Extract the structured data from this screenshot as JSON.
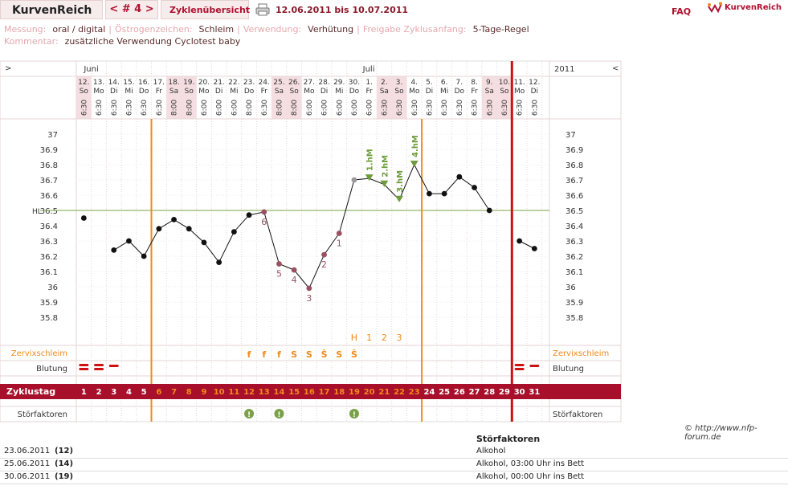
{
  "header": {
    "brand": "KurvenReich",
    "cycle_nav": "< # 4 >",
    "tab": "Zyklenübersicht",
    "date_range": "12.06.2011 bis 10.07.2011",
    "faq": "FAQ",
    "logo_text": "KurvenReich"
  },
  "meta": {
    "messung_label": "Messung:",
    "messung_value": "oral / digital",
    "oestrogen_label": "Östrogenzeichen:",
    "oestrogen_value": "Schleim",
    "verwendung_label": "Verwendung:",
    "verwendung_value": "Verhütung",
    "freigabe_label": "Freigabe Zyklusanfang:",
    "freigabe_value": "5-Tage-Regel",
    "kommentar_label": "Kommentar:",
    "kommentar_value": "zusätzliche Verwendung Cyclotest baby"
  },
  "chart_data": {
    "type": "line",
    "month_labels": [
      "Juni",
      "Juli"
    ],
    "year_label": "2011",
    "nav_left": ">",
    "nav_right": "<",
    "days": [
      {
        "date": "12.",
        "wd": "So",
        "time": "6:30",
        "we": true
      },
      {
        "date": "13.",
        "wd": "Mo",
        "time": "6:30",
        "we": false
      },
      {
        "date": "14.",
        "wd": "Di",
        "time": "6:30",
        "we": false
      },
      {
        "date": "15.",
        "wd": "Mi",
        "time": "6:30",
        "we": false
      },
      {
        "date": "16.",
        "wd": "Do",
        "time": "6:30",
        "we": false
      },
      {
        "date": "17.",
        "wd": "Fr",
        "time": "6:30",
        "we": false
      },
      {
        "date": "18.",
        "wd": "Sa",
        "time": "8:00",
        "we": true
      },
      {
        "date": "19.",
        "wd": "So",
        "time": "8:00",
        "we": true
      },
      {
        "date": "20.",
        "wd": "Mo",
        "time": "6:00",
        "we": false
      },
      {
        "date": "21.",
        "wd": "Di",
        "time": "6:00",
        "we": false
      },
      {
        "date": "22.",
        "wd": "Mi",
        "time": "6:00",
        "we": false
      },
      {
        "date": "23.",
        "wd": "Do",
        "time": "8:00",
        "we": false
      },
      {
        "date": "24.",
        "wd": "Fr",
        "time": "6:30",
        "we": false
      },
      {
        "date": "25.",
        "wd": "Sa",
        "time": "8:00",
        "we": true
      },
      {
        "date": "26.",
        "wd": "So",
        "time": "8:00",
        "we": true
      },
      {
        "date": "27.",
        "wd": "Mo",
        "time": "6:00",
        "we": false
      },
      {
        "date": "28.",
        "wd": "Di",
        "time": "6:00",
        "we": false
      },
      {
        "date": "29.",
        "wd": "Mi",
        "time": "6:00",
        "we": false
      },
      {
        "date": "30.",
        "wd": "Do",
        "time": "6:00",
        "we": false
      },
      {
        "date": "1.",
        "wd": "Fr",
        "time": "6:00",
        "we": false
      },
      {
        "date": "2.",
        "wd": "Sa",
        "time": "6:30",
        "we": true
      },
      {
        "date": "3.",
        "wd": "So",
        "time": "6:30",
        "we": true
      },
      {
        "date": "4.",
        "wd": "Mo",
        "time": "6:30",
        "we": false
      },
      {
        "date": "5.",
        "wd": "Di",
        "time": "6:30",
        "we": false
      },
      {
        "date": "6.",
        "wd": "Mi",
        "time": "6:30",
        "we": false
      },
      {
        "date": "7.",
        "wd": "Do",
        "time": "6:30",
        "we": false
      },
      {
        "date": "8.",
        "wd": "Fr",
        "time": "6:30",
        "we": false
      },
      {
        "date": "9.",
        "wd": "Sa",
        "time": "6:30",
        "we": true
      },
      {
        "date": "10.",
        "wd": "So",
        "time": "6:30",
        "we": true
      },
      {
        "date": "11.",
        "wd": "Mo",
        "time": "6:30",
        "we": false
      },
      {
        "date": "12.",
        "wd": "Di",
        "time": "6:30",
        "we": false
      }
    ],
    "temperature_ticks": [
      "37",
      "36.9",
      "36.8",
      "36.7",
      "36.6",
      "36.5",
      "36.4",
      "36.3",
      "36.2",
      "36.1",
      "36",
      "35.9",
      "35.8"
    ],
    "ylim": [
      35.8,
      37.0
    ],
    "hl_label": "HL",
    "hl_value": 36.5,
    "temperatures": [
      36.45,
      null,
      36.24,
      36.3,
      36.2,
      36.38,
      36.44,
      36.38,
      36.29,
      36.16,
      36.36,
      36.47,
      36.49,
      36.15,
      36.11,
      35.99,
      36.21,
      36.35,
      36.7,
      36.71,
      36.67,
      36.57,
      36.8,
      36.61,
      36.61,
      36.72,
      36.65,
      36.5,
      null,
      36.3,
      36.25
    ],
    "segments": [
      [
        2,
        17
      ],
      [
        17,
        27
      ],
      [
        29,
        30
      ]
    ],
    "count_labels": [
      {
        "day": 13,
        "label": "6"
      },
      {
        "day": 14,
        "label": "5"
      },
      {
        "day": 15,
        "label": "4"
      },
      {
        "day": 16,
        "label": "3"
      },
      {
        "day": 17,
        "label": "2"
      },
      {
        "day": 18,
        "label": "1"
      }
    ],
    "hm_labels": [
      {
        "day": 20,
        "label": "1.hM"
      },
      {
        "day": 21,
        "label": "2.hM"
      },
      {
        "day": 22,
        "label": "3.hM"
      },
      {
        "day": 23,
        "label": "4.hM"
      }
    ],
    "peak_labels": [
      {
        "day": 19,
        "label": "H"
      },
      {
        "day": 20,
        "label": "1"
      },
      {
        "day": 21,
        "label": "2"
      },
      {
        "day": 22,
        "label": "3"
      }
    ],
    "mucus_label": "Zervixschleim",
    "mucus": [
      {
        "day": 12,
        "s": "f"
      },
      {
        "day": 13,
        "s": "f"
      },
      {
        "day": 14,
        "s": "f"
      },
      {
        "day": 15,
        "s": "S"
      },
      {
        "day": 16,
        "s": "S"
      },
      {
        "day": 17,
        "s": "Ŝ"
      },
      {
        "day": 18,
        "s": "S"
      },
      {
        "day": 19,
        "s": "Ŝ"
      }
    ],
    "bleeding_label": "Blutung",
    "bleeding": [
      {
        "day": 1,
        "level": 2
      },
      {
        "day": 2,
        "level": 2
      },
      {
        "day": 3,
        "level": 1
      },
      {
        "day": 30,
        "level": 2
      },
      {
        "day": 31,
        "level": 1
      }
    ],
    "cycle_label": "Zyklustag",
    "cycle_days": [
      "1",
      "2",
      "3",
      "4",
      "5",
      "6",
      "7",
      "8",
      "9",
      "10",
      "11",
      "12",
      "13",
      "14",
      "15",
      "16",
      "17",
      "18",
      "19",
      "20",
      "21",
      "22",
      "23",
      "24",
      "25",
      "26",
      "27",
      "28",
      "29",
      "30",
      "31"
    ],
    "disturb_label": "Störfaktoren",
    "disturb_days": [
      12,
      14,
      19
    ],
    "colors": {
      "accent": "#a80f2b",
      "orange": "#f08a1c",
      "green": "#6e9c3c",
      "dark_line": "#111111",
      "grey_point": "#9a9a9a",
      "mauve_point": "#9a5060",
      "hl_line": "#7aa04a",
      "weekend_bg": "#f5dee2",
      "red_line": "#cc1111"
    }
  },
  "copyright": "© http://www.nfp-forum.de",
  "stoerfaktoren": {
    "heading": "Störfaktoren",
    "rows": [
      {
        "date": "23.06.2011",
        "day": "(12)",
        "text": "Alkohol"
      },
      {
        "date": "25.06.2011",
        "day": "(14)",
        "text": "Alkohol, 03:00 Uhr ins Bett"
      },
      {
        "date": "30.06.2011",
        "day": "(19)",
        "text": "Alkohol, 00:00 Uhr ins Bett"
      }
    ]
  }
}
